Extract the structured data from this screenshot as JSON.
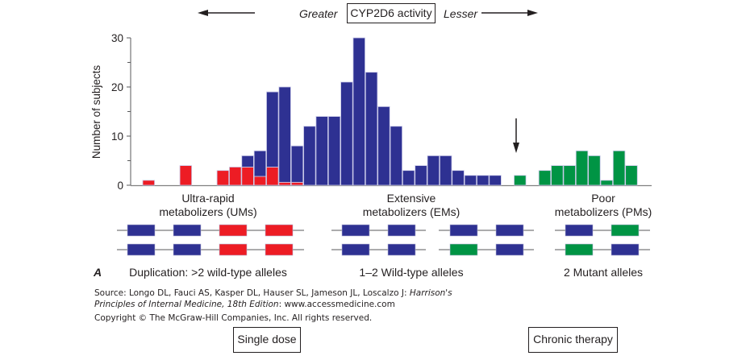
{
  "header": {
    "center_label": "CYP2D6 activity",
    "left_label": "Greater",
    "right_label": "Lesser"
  },
  "chart_data": {
    "type": "bar",
    "stacked": true,
    "title": "CYP2D6 activity",
    "xlabel": "",
    "ylabel": "Number of subjects",
    "ylim": [
      0,
      30
    ],
    "yticks_major": [
      0,
      10,
      20,
      30
    ],
    "yticks_minor": [
      5,
      15,
      25
    ],
    "grid": false,
    "bins": 41,
    "series": [
      {
        "name": "Ultra-rapid metabolizers (UMs)",
        "color": "#ed1c24",
        "values": [
          1,
          0,
          0,
          4,
          0,
          0,
          3,
          3.7,
          3.7,
          1.8,
          3.7,
          0.6,
          0.6,
          0,
          0,
          0,
          0,
          0,
          0,
          0,
          0,
          0,
          0,
          0,
          0,
          0,
          0,
          0,
          0,
          0,
          0,
          0,
          0,
          0,
          0,
          0,
          0,
          0,
          0,
          0,
          0
        ]
      },
      {
        "name": "Extensive metabolizers (EMs)",
        "color": "#2e3192",
        "values": [
          0,
          0,
          0,
          0,
          0,
          0,
          0,
          0,
          2.3,
          5.2,
          15.3,
          19.4,
          7.4,
          12,
          14,
          14,
          21,
          30,
          23,
          16,
          12,
          3,
          4,
          6,
          6,
          3,
          2,
          2,
          2,
          0,
          0,
          0,
          0,
          0,
          0,
          0,
          0,
          0,
          0,
          0,
          0
        ]
      },
      {
        "name": "Poor metabolizers (PMs)",
        "color": "#009444",
        "values": [
          0,
          0,
          0,
          0,
          0,
          0,
          0,
          0,
          0,
          0,
          0,
          0,
          0,
          0,
          0,
          0,
          0,
          0,
          0,
          0,
          0,
          0,
          0,
          0,
          0,
          0,
          0,
          0,
          0,
          0,
          2,
          0,
          3,
          4,
          4,
          7,
          6,
          1,
          7,
          4,
          0
        ]
      }
    ],
    "annotations": [
      "antimode arrow between EMs and PMs"
    ]
  },
  "categories": [
    {
      "label_line1": "Ultra-rapid",
      "label_line2": "metabolizers (UMs)",
      "allele_description": "Duplication: >2 wild-type alleles",
      "allele_rows": [
        [
          "#2e3192",
          "#2e3192",
          "#ed1c24",
          "#ed1c24"
        ],
        [
          "#2e3192",
          "#2e3192",
          "#ed1c24",
          "#ed1c24"
        ]
      ]
    },
    {
      "label_line1": "Extensive",
      "label_line2": "metabolizers (EMs)",
      "allele_description": "1–2 Wild-type alleles",
      "allele_rows_left": [
        [
          "#2e3192",
          "#2e3192"
        ],
        [
          "#2e3192",
          "#2e3192"
        ]
      ],
      "allele_rows_right": [
        [
          "#2e3192",
          "#2e3192"
        ],
        [
          "#009444",
          "#2e3192"
        ]
      ]
    },
    {
      "label_line1": "Poor",
      "label_line2": "metabolizers (PMs)",
      "allele_description": "2 Mutant alleles",
      "allele_rows": [
        [
          "#2e3192",
          "#009444"
        ],
        [
          "#009444",
          "#2e3192"
        ]
      ]
    }
  ],
  "panel_letter": "A",
  "source": {
    "prefix": "Source: Longo DL, Fauci AS, Kasper DL, Hauser SL, Jameson JL, Loscalzo J: ",
    "title_part1": "Harrison's",
    "title_part2": "Principles of Internal Medicine, 18th Edition",
    "suffix": ": www.accessmedicine.com",
    "copyright": "Copyright © The McGraw-Hill Companies, Inc. All rights reserved."
  },
  "buttons": {
    "single_dose": "Single dose",
    "chronic_therapy": "Chronic therapy"
  }
}
